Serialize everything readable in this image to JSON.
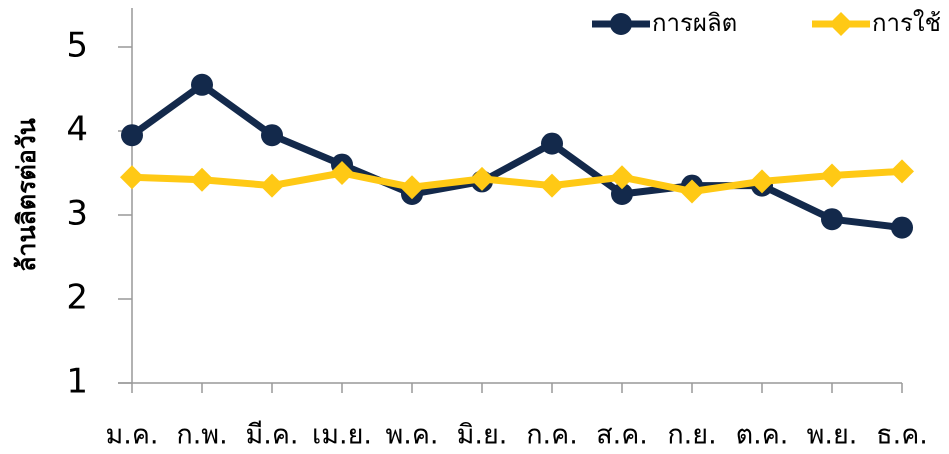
{
  "chart_data": {
    "type": "line",
    "y_label": "ล้านลิตรต่อวัน",
    "categories": [
      "ม.ค.",
      "ก.พ.",
      "มี.ค.",
      "เม.ย.",
      "พ.ค.",
      "มิ.ย.",
      "ก.ค.",
      "ส.ค.",
      "ก.ย.",
      "ต.ค.",
      "พ.ย.",
      "ธ.ค."
    ],
    "series": [
      {
        "name": "การผลิต",
        "color": "#13294b",
        "marker": "circle",
        "values": [
          3.95,
          4.55,
          3.95,
          3.6,
          3.25,
          3.4,
          3.85,
          3.25,
          3.35,
          3.35,
          2.95,
          2.85
        ]
      },
      {
        "name": "การใช้",
        "color": "#ffc915",
        "marker": "diamond",
        "values": [
          3.45,
          3.42,
          3.35,
          3.5,
          3.33,
          3.43,
          3.35,
          3.45,
          3.28,
          3.4,
          3.47,
          3.52
        ]
      }
    ],
    "ylim": [
      1,
      5
    ],
    "yticks": [
      1,
      2,
      3,
      4,
      5
    ],
    "grid": false,
    "legend": "top-right"
  }
}
